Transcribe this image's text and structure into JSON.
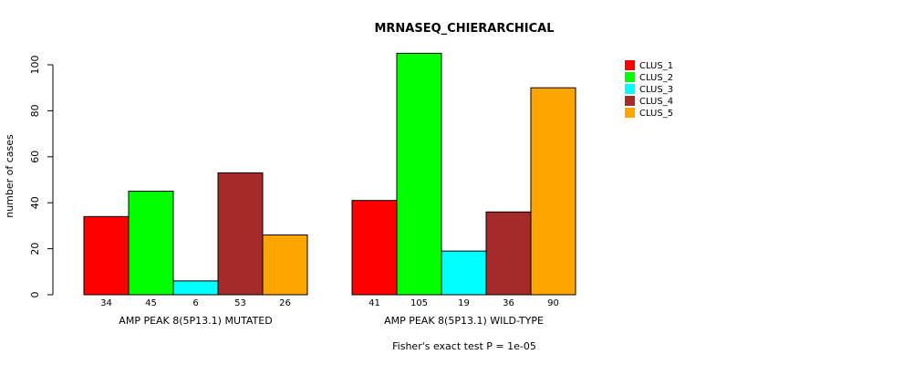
{
  "chart_data": {
    "type": "bar",
    "title": "MRNASEQ_CHIERARCHICAL",
    "ylabel": "number of cases",
    "xlabel": "",
    "footnote": "Fisher's exact test P = 1e-05",
    "ylim": [
      0,
      105
    ],
    "yticks": [
      0,
      20,
      40,
      60,
      80,
      100
    ],
    "grid": false,
    "legend_position": "top-right",
    "groups": [
      "AMP PEAK  8(5P13.1) MUTATED",
      "AMP PEAK  8(5P13.1) WILD-TYPE"
    ],
    "series": [
      {
        "name": "CLUS_1",
        "color": "#ff0000",
        "values": [
          34,
          41
        ]
      },
      {
        "name": "CLUS_2",
        "color": "#00ff00",
        "values": [
          45,
          105
        ]
      },
      {
        "name": "CLUS_3",
        "color": "#00ffff",
        "values": [
          6,
          19
        ]
      },
      {
        "name": "CLUS_4",
        "color": "#a52a2a",
        "values": [
          53,
          36
        ]
      },
      {
        "name": "CLUS_5",
        "color": "#ffa500",
        "values": [
          26,
          90
        ]
      }
    ]
  }
}
